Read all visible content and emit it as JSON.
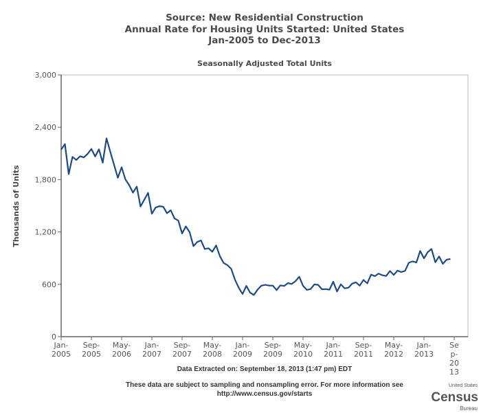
{
  "chart_data": {
    "type": "line",
    "title": [
      "Source: New Residential Construction",
      "Annual Rate for Housing Units Started: United States",
      "Jan-2005 to Dec-2013"
    ],
    "subtitle": "Seasonally Adjusted Total Units",
    "ylabel": "Thousands of Units",
    "xlabel": "Data Extracted on: September 18, 2013 (1:47 pm) EDT",
    "ylim": [
      0,
      3000
    ],
    "yticks": [
      "0",
      "600",
      "1,200",
      "1,800",
      "2,400",
      "3,000"
    ],
    "ytick_values": [
      0,
      600,
      1200,
      1800,
      2400,
      3000
    ],
    "xticks": [
      {
        "month": "2005-01",
        "label": [
          "Jan-",
          "2005"
        ]
      },
      {
        "month": "2005-09",
        "label": [
          "Sep-",
          "2005"
        ]
      },
      {
        "month": "2006-05",
        "label": [
          "May-",
          "2006"
        ]
      },
      {
        "month": "2007-01",
        "label": [
          "Jan-",
          "2007"
        ]
      },
      {
        "month": "2007-09",
        "label": [
          "Sep-",
          "2007"
        ]
      },
      {
        "month": "2008-05",
        "label": [
          "May-",
          "2008"
        ]
      },
      {
        "month": "2009-01",
        "label": [
          "Jan-",
          "2009"
        ]
      },
      {
        "month": "2009-09",
        "label": [
          "Sep-",
          "2009"
        ]
      },
      {
        "month": "2010-05",
        "label": [
          "May-",
          "2010"
        ]
      },
      {
        "month": "2011-01",
        "label": [
          "Jan-",
          "2011"
        ]
      },
      {
        "month": "2011-09",
        "label": [
          "Sep-",
          "2011"
        ]
      },
      {
        "month": "2012-05",
        "label": [
          "May-",
          "2012"
        ]
      },
      {
        "month": "2013-01",
        "label": [
          "Jan-",
          "2013"
        ]
      },
      {
        "month": "2013-09",
        "label": [
          "Se",
          "p-",
          "20",
          "13"
        ]
      }
    ],
    "x_start": "2005-01",
    "x_end": "2013-12",
    "grid": false,
    "line_color": "#1f4a7f",
    "series": [
      {
        "start": "2005-01",
        "values": [
          2144,
          2207,
          1864,
          2061,
          2025,
          2068,
          2054,
          2095,
          2151,
          2065,
          2147,
          1994,
          2273,
          2119,
          1969,
          1821,
          1942,
          1802,
          1737,
          1650,
          1720,
          1491,
          1570,
          1649,
          1409,
          1480,
          1495,
          1490,
          1415,
          1448,
          1354,
          1330,
          1183,
          1264,
          1197,
          1037,
          1084,
          1103,
          1005,
          1013,
          973,
          1046,
          923,
          844,
          820,
          777,
          652,
          560,
          490,
          582,
          505,
          478,
          540,
          585,
          594,
          586,
          585,
          534,
          588,
          581,
          614,
          604,
          636,
          687,
          583,
          536,
          546,
          599,
          594,
          543,
          545,
          539,
          630,
          517,
          600,
          554,
          561,
          608,
          623,
          585,
          650,
          610,
          711,
          694,
          723,
          704,
          695,
          753,
          708,
          757,
          740,
          754,
          847,
          863,
          851,
          983,
          898,
          969,
          1005,
          853,
          919,
          835,
          883,
          891
        ]
      }
    ]
  },
  "footer": {
    "note_line1": "These data are subject to sampling and nonsampling error. For more information see",
    "note_line2": "http://www.census.gov/starts"
  },
  "logo": {
    "top": "United States",
    "main": "Census",
    "bottom": "Bureau"
  }
}
